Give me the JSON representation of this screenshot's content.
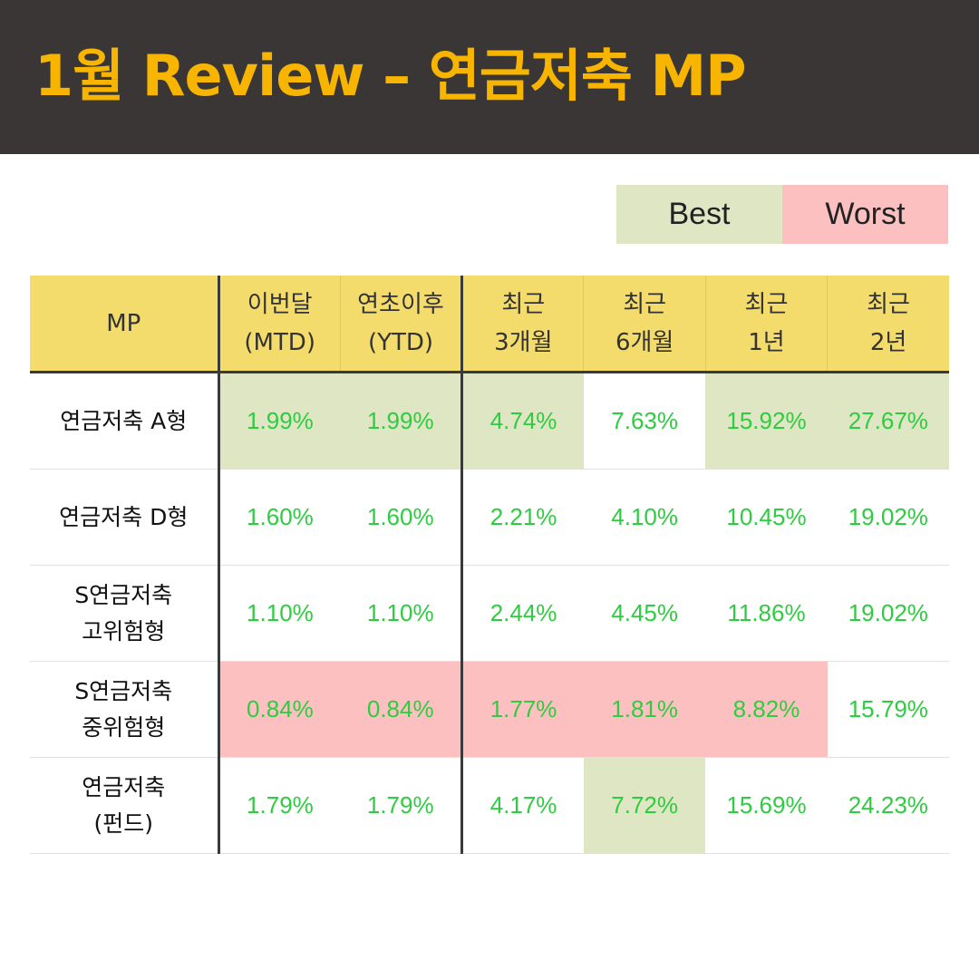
{
  "header": {
    "title": "1월 Review – 연금저축 MP"
  },
  "legend": {
    "best": "Best",
    "worst": "Worst",
    "best_color": "#dfe6c4",
    "worst_color": "#fcc0c0"
  },
  "table": {
    "columns": [
      {
        "line1": "MP",
        "line2": ""
      },
      {
        "line1": "이번달",
        "line2": "(MTD)"
      },
      {
        "line1": "연초이후",
        "line2": "(YTD)"
      },
      {
        "line1": "최근",
        "line2": "3개월"
      },
      {
        "line1": "최근",
        "line2": "6개월"
      },
      {
        "line1": "최근",
        "line2": "1년"
      },
      {
        "line1": "최근",
        "line2": "2년"
      }
    ],
    "rows": [
      {
        "name1": "연금저축 A형",
        "name2": "",
        "values": [
          "1.99%",
          "1.99%",
          "4.74%",
          "7.63%",
          "15.92%",
          "27.67%"
        ],
        "marks": [
          "best",
          "best",
          "best",
          "",
          "best",
          "best"
        ]
      },
      {
        "name1": "연금저축 D형",
        "name2": "",
        "values": [
          "1.60%",
          "1.60%",
          "2.21%",
          "4.10%",
          "10.45%",
          "19.02%"
        ],
        "marks": [
          "",
          "",
          "",
          "",
          "",
          ""
        ]
      },
      {
        "name1": "S연금저축",
        "name2": "고위험형",
        "values": [
          "1.10%",
          "1.10%",
          "2.44%",
          "4.45%",
          "11.86%",
          "19.02%"
        ],
        "marks": [
          "",
          "",
          "",
          "",
          "",
          ""
        ]
      },
      {
        "name1": "S연금저축",
        "name2": "중위험형",
        "values": [
          "0.84%",
          "0.84%",
          "1.77%",
          "1.81%",
          "8.82%",
          "15.79%"
        ],
        "marks": [
          "worst",
          "worst",
          "worst",
          "worst",
          "worst",
          ""
        ]
      },
      {
        "name1": "연금저축",
        "name2": "(펀드)",
        "values": [
          "1.79%",
          "1.79%",
          "4.17%",
          "7.72%",
          "15.69%",
          "24.23%"
        ],
        "marks": [
          "",
          "",
          "",
          "best",
          "",
          ""
        ]
      }
    ]
  }
}
